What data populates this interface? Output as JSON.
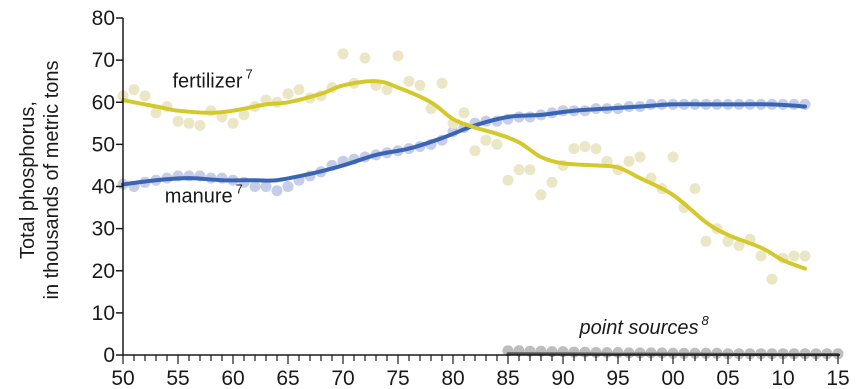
{
  "chart_data": {
    "type": "line",
    "ylabel_line1": "Total phosphorus,",
    "ylabel_line2": "in thousands of metric tons",
    "xlim": [
      1950,
      2015
    ],
    "ylim": [
      0,
      80
    ],
    "x_tick_labels": [
      "50",
      "55",
      "60",
      "65",
      "70",
      "75",
      "80",
      "85",
      "90",
      "95",
      "00",
      "05",
      "10",
      "15"
    ],
    "y_tick_labels": [
      "0",
      "10",
      "20",
      "30",
      "40",
      "50",
      "60",
      "70",
      "80"
    ],
    "grid": false,
    "series": [
      {
        "name": "fertilizer",
        "superscript": "7",
        "color": "#d4c92a",
        "point_color": "#ebe7c6",
        "trend": [
          [
            1950,
            60.5
          ],
          [
            1953,
            59
          ],
          [
            1955,
            58
          ],
          [
            1958,
            57.5
          ],
          [
            1960,
            58
          ],
          [
            1963,
            59.5
          ],
          [
            1965,
            60
          ],
          [
            1968,
            62
          ],
          [
            1970,
            64
          ],
          [
            1973,
            65
          ],
          [
            1975,
            63.5
          ],
          [
            1978,
            60
          ],
          [
            1980,
            56
          ],
          [
            1982,
            54
          ],
          [
            1984,
            52.5
          ],
          [
            1986,
            50.5
          ],
          [
            1988,
            47
          ],
          [
            1990,
            45.5
          ],
          [
            1993,
            45
          ],
          [
            1995,
            44.5
          ],
          [
            1997,
            42
          ],
          [
            2000,
            38
          ],
          [
            2003,
            31.5
          ],
          [
            2005,
            28.5
          ],
          [
            2008,
            25.5
          ],
          [
            2010,
            22.5
          ],
          [
            2012,
            20.5
          ]
        ],
        "points": [
          [
            1950,
            61.5
          ],
          [
            1951,
            63
          ],
          [
            1952,
            61.5
          ],
          [
            1953,
            57.5
          ],
          [
            1954,
            59
          ],
          [
            1955,
            55.5
          ],
          [
            1956,
            55
          ],
          [
            1957,
            54.5
          ],
          [
            1958,
            58
          ],
          [
            1959,
            56.5
          ],
          [
            1960,
            55
          ],
          [
            1961,
            57
          ],
          [
            1962,
            59
          ],
          [
            1963,
            60.5
          ],
          [
            1964,
            60
          ],
          [
            1965,
            62
          ],
          [
            1966,
            63
          ],
          [
            1967,
            61
          ],
          [
            1968,
            61.5
          ],
          [
            1969,
            63.5
          ],
          [
            1970,
            71.5
          ],
          [
            1971,
            64.5
          ],
          [
            1972,
            70.5
          ],
          [
            1973,
            64
          ],
          [
            1974,
            63
          ],
          [
            1975,
            71
          ],
          [
            1976,
            65
          ],
          [
            1977,
            64
          ],
          [
            1978,
            58.5
          ],
          [
            1979,
            64.5
          ],
          [
            1980,
            55
          ],
          [
            1981,
            57.5
          ],
          [
            1982,
            48.5
          ],
          [
            1983,
            51
          ],
          [
            1984,
            50
          ],
          [
            1985,
            41.5
          ],
          [
            1986,
            44
          ],
          [
            1987,
            44
          ],
          [
            1988,
            38
          ],
          [
            1989,
            41
          ],
          [
            1990,
            45
          ],
          [
            1991,
            49
          ],
          [
            1992,
            49.5
          ],
          [
            1993,
            49
          ],
          [
            1994,
            46
          ],
          [
            1995,
            44
          ],
          [
            1996,
            46
          ],
          [
            1997,
            47
          ],
          [
            1998,
            42
          ],
          [
            1999,
            39.5
          ],
          [
            2000,
            47
          ],
          [
            2001,
            35
          ],
          [
            2002,
            39.5
          ],
          [
            2003,
            27
          ],
          [
            2004,
            30
          ],
          [
            2005,
            27
          ],
          [
            2006,
            26
          ],
          [
            2007,
            27.5
          ],
          [
            2008,
            23.5
          ],
          [
            2009,
            18
          ],
          [
            2010,
            23
          ],
          [
            2011,
            23.5
          ],
          [
            2012,
            23.5
          ]
        ]
      },
      {
        "name": "manure",
        "superscript": "7",
        "color": "#3a64b4",
        "point_color": "#c5cde8",
        "trend": [
          [
            1950,
            40.5
          ],
          [
            1953,
            41.5
          ],
          [
            1956,
            42
          ],
          [
            1959,
            41.5
          ],
          [
            1962,
            41.5
          ],
          [
            1964,
            41.5
          ],
          [
            1967,
            43
          ],
          [
            1970,
            45
          ],
          [
            1973,
            47.5
          ],
          [
            1976,
            49
          ],
          [
            1979,
            51.5
          ],
          [
            1982,
            54.5
          ],
          [
            1985,
            56.5
          ],
          [
            1988,
            57
          ],
          [
            1991,
            58
          ],
          [
            1994,
            58.5
          ],
          [
            1997,
            59
          ],
          [
            2000,
            59.5
          ],
          [
            2003,
            59.5
          ],
          [
            2006,
            59.5
          ],
          [
            2009,
            59.5
          ],
          [
            2012,
            59
          ]
        ],
        "points": [
          [
            1950,
            40.5
          ],
          [
            1951,
            40
          ],
          [
            1952,
            41
          ],
          [
            1953,
            41.5
          ],
          [
            1954,
            42
          ],
          [
            1955,
            42.5
          ],
          [
            1956,
            42.5
          ],
          [
            1957,
            42.5
          ],
          [
            1958,
            42
          ],
          [
            1959,
            42
          ],
          [
            1960,
            41.5
          ],
          [
            1961,
            41
          ],
          [
            1962,
            40
          ],
          [
            1963,
            40
          ],
          [
            1964,
            39
          ],
          [
            1965,
            40
          ],
          [
            1966,
            41.5
          ],
          [
            1967,
            42.5
          ],
          [
            1968,
            43.5
          ],
          [
            1969,
            45
          ],
          [
            1970,
            46
          ],
          [
            1971,
            46.5
          ],
          [
            1972,
            47
          ],
          [
            1973,
            47.5
          ],
          [
            1974,
            48
          ],
          [
            1975,
            48.5
          ],
          [
            1976,
            49
          ],
          [
            1977,
            49.5
          ],
          [
            1978,
            50
          ],
          [
            1979,
            51
          ],
          [
            1980,
            53
          ],
          [
            1981,
            54
          ],
          [
            1982,
            55
          ],
          [
            1983,
            55.5
          ],
          [
            1984,
            55.5
          ],
          [
            1985,
            56
          ],
          [
            1986,
            56.5
          ],
          [
            1987,
            56.5
          ],
          [
            1988,
            57
          ],
          [
            1989,
            57.5
          ],
          [
            1990,
            58
          ],
          [
            1991,
            58
          ],
          [
            1992,
            58
          ],
          [
            1993,
            58.5
          ],
          [
            1994,
            58.5
          ],
          [
            1995,
            58.5
          ],
          [
            1996,
            59
          ],
          [
            1997,
            59
          ],
          [
            1998,
            59.5
          ],
          [
            1999,
            59.5
          ],
          [
            2000,
            59.5
          ],
          [
            2001,
            59.5
          ],
          [
            2002,
            59.5
          ],
          [
            2003,
            59.5
          ],
          [
            2004,
            59.5
          ],
          [
            2005,
            59.5
          ],
          [
            2006,
            59.5
          ],
          [
            2007,
            59.5
          ],
          [
            2008,
            59.5
          ],
          [
            2009,
            59.5
          ],
          [
            2010,
            59.5
          ],
          [
            2011,
            59.5
          ],
          [
            2012,
            59.5
          ]
        ]
      },
      {
        "name": "point sources",
        "superscript": "8",
        "color": "#555555",
        "point_color": "#bdbdbd",
        "trend": [
          [
            1985,
            0.3
          ],
          [
            1990,
            0.25
          ],
          [
            1995,
            0.2
          ],
          [
            2000,
            0.2
          ],
          [
            2005,
            0.15
          ],
          [
            2010,
            0.1
          ],
          [
            2015,
            0.1
          ]
        ],
        "points": [
          [
            1985,
            1
          ],
          [
            1986,
            1
          ],
          [
            1987,
            0.9
          ],
          [
            1988,
            0.9
          ],
          [
            1989,
            0.8
          ],
          [
            1990,
            0.8
          ],
          [
            1991,
            0.7
          ],
          [
            1992,
            0.7
          ],
          [
            1993,
            0.6
          ],
          [
            1994,
            0.6
          ],
          [
            1995,
            0.6
          ],
          [
            1996,
            0.5
          ],
          [
            1997,
            0.5
          ],
          [
            1998,
            0.5
          ],
          [
            1999,
            0.5
          ],
          [
            2000,
            0.4
          ],
          [
            2001,
            0.4
          ],
          [
            2002,
            0.4
          ],
          [
            2003,
            0.4
          ],
          [
            2004,
            0.4
          ],
          [
            2005,
            0.3
          ],
          [
            2006,
            0.3
          ],
          [
            2007,
            0.3
          ],
          [
            2008,
            0.3
          ],
          [
            2009,
            0.3
          ],
          [
            2010,
            0.3
          ],
          [
            2011,
            0.3
          ],
          [
            2012,
            0.3
          ],
          [
            2013,
            0.3
          ],
          [
            2014,
            0.3
          ],
          [
            2015,
            0.3
          ]
        ]
      }
    ]
  }
}
